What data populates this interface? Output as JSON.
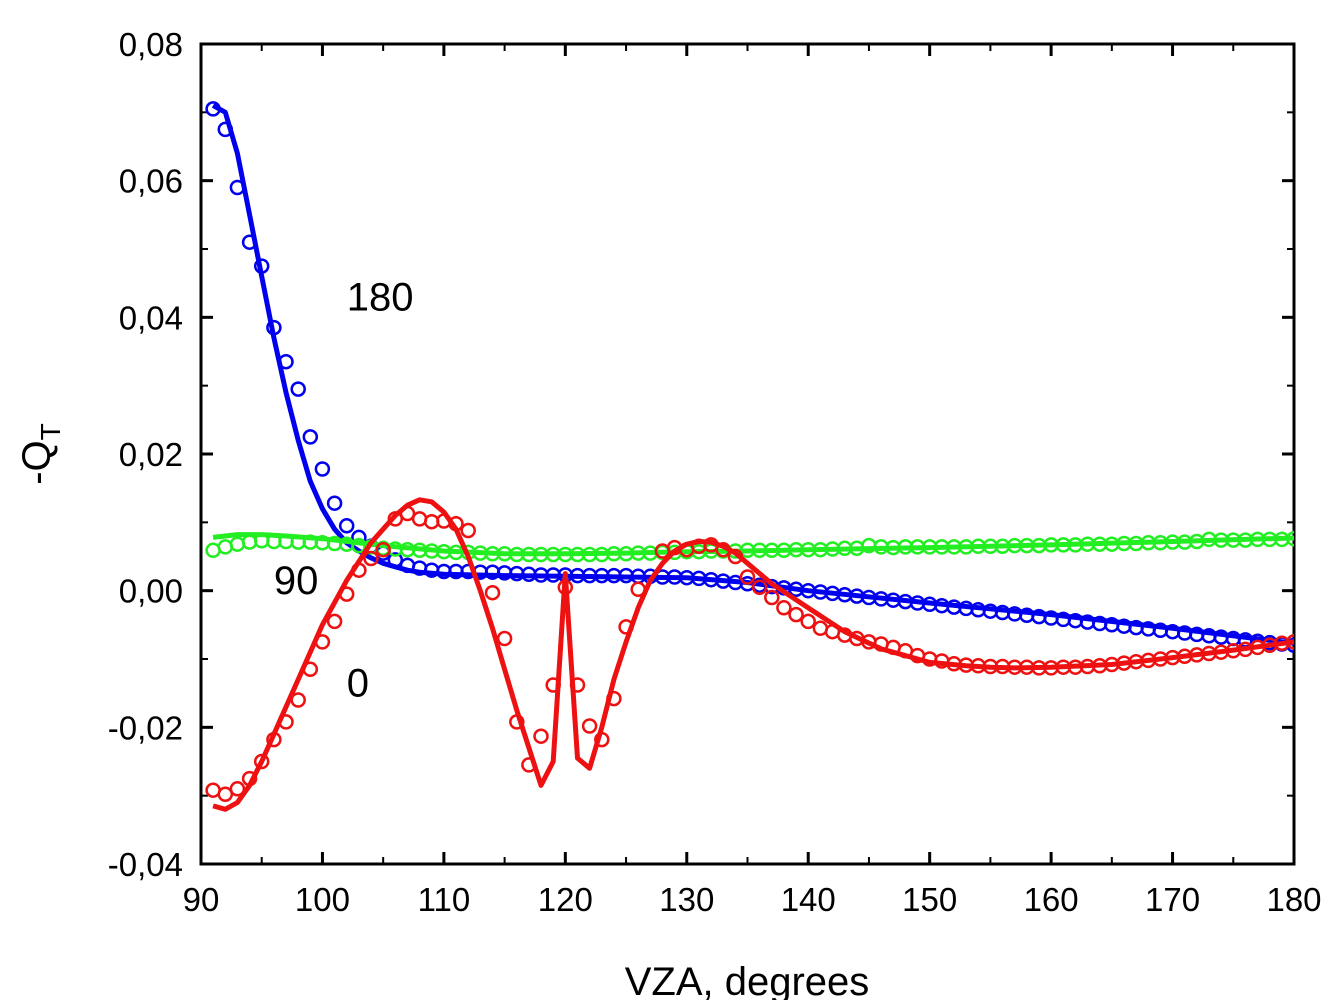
{
  "chart_data": {
    "type": "line",
    "title": "",
    "xlabel": "VZA, degrees",
    "ylabel_main": "-Q",
    "ylabel_sub": "T",
    "xlim": [
      90,
      180
    ],
    "ylim": [
      -0.04,
      0.08
    ],
    "x_ticks": [
      90,
      100,
      110,
      120,
      130,
      140,
      150,
      160,
      170,
      180
    ],
    "y_ticks": [
      -0.04,
      -0.02,
      0.0,
      0.02,
      0.04,
      0.06,
      0.08
    ],
    "x_tick_labels": [
      "90",
      "100",
      "110",
      "120",
      "130",
      "140",
      "150",
      "160",
      "170",
      "180"
    ],
    "y_tick_labels": [
      "-0,04",
      "-0,02",
      "0,00",
      "0,02",
      "0,04",
      "0,06",
      "0,08"
    ],
    "annotations": [
      {
        "text": "180",
        "x": 102,
        "y": 0.041
      },
      {
        "text": "90",
        "x": 96,
        "y": -0.0005
      },
      {
        "text": "0",
        "x": 102,
        "y": -0.0155
      }
    ],
    "series": [
      {
        "name": "180",
        "color": "#0000ee",
        "line": {
          "x": [
            91,
            92,
            93,
            94,
            95,
            96,
            97,
            98,
            99,
            100,
            101,
            102,
            103,
            104,
            105,
            106,
            107,
            108,
            110,
            115,
            120,
            125,
            130,
            135,
            140,
            150,
            160,
            170,
            180
          ],
          "y": [
            0.071,
            0.07,
            0.064,
            0.055,
            0.046,
            0.037,
            0.029,
            0.022,
            0.016,
            0.012,
            0.009,
            0.007,
            0.0058,
            0.0048,
            0.004,
            0.0035,
            0.003,
            0.0027,
            0.0024,
            0.0022,
            0.0021,
            0.002,
            0.0019,
            0.0012,
            0.0,
            -0.0018,
            -0.0035,
            -0.0055,
            -0.0077
          ]
        },
        "points": {
          "x": [
            91,
            92,
            93,
            94,
            95,
            96,
            97,
            98,
            99,
            100,
            101,
            102,
            103,
            104,
            105,
            106,
            107,
            108,
            109,
            110,
            111,
            112,
            113,
            114,
            115,
            116,
            117,
            118,
            119,
            120,
            121,
            122,
            123,
            124,
            125,
            126,
            127,
            128,
            129,
            130,
            131,
            132,
            133,
            134,
            135,
            136,
            137,
            138,
            139,
            140,
            141,
            142,
            143,
            144,
            145,
            146,
            147,
            148,
            149,
            150,
            151,
            152,
            153,
            154,
            155,
            156,
            157,
            158,
            159,
            160,
            161,
            162,
            163,
            164,
            165,
            166,
            167,
            168,
            169,
            170,
            171,
            172,
            173,
            174,
            175,
            176,
            177,
            178,
            179,
            180
          ],
          "y": [
            0.0705,
            0.0675,
            0.059,
            0.051,
            0.0475,
            0.0385,
            0.0335,
            0.0295,
            0.0225,
            0.0178,
            0.0128,
            0.0095,
            0.0078,
            0.0065,
            0.0055,
            0.0045,
            0.0037,
            0.0033,
            0.003,
            0.0028,
            0.0028,
            0.0028,
            0.0027,
            0.0027,
            0.0026,
            0.0025,
            0.0024,
            0.0023,
            0.0023,
            0.0023,
            0.0022,
            0.0022,
            0.0022,
            0.0022,
            0.0022,
            0.0021,
            0.0021,
            0.002,
            0.002,
            0.0019,
            0.0018,
            0.0016,
            0.0014,
            0.0012,
            0.001,
            0.0008,
            0.0006,
            0.0004,
            0.0002,
            0.0,
            -0.0002,
            -0.0004,
            -0.0006,
            -0.0008,
            -0.001,
            -0.0012,
            -0.0014,
            -0.0016,
            -0.0018,
            -0.002,
            -0.0022,
            -0.0024,
            -0.0026,
            -0.0028,
            -0.003,
            -0.0032,
            -0.0034,
            -0.0036,
            -0.0038,
            -0.004,
            -0.0042,
            -0.0044,
            -0.0046,
            -0.0048,
            -0.005,
            -0.0052,
            -0.0054,
            -0.0056,
            -0.0058,
            -0.006,
            -0.0062,
            -0.0064,
            -0.0066,
            -0.0068,
            -0.007,
            -0.0072,
            -0.0074,
            -0.0076,
            -0.0078,
            -0.008
          ]
        }
      },
      {
        "name": "90",
        "color": "#22ee22",
        "line": {
          "x": [
            91,
            93,
            95,
            97,
            100,
            105,
            110,
            115,
            120,
            125,
            130,
            135,
            140,
            150,
            160,
            170,
            180
          ],
          "y": [
            0.0078,
            0.0082,
            0.0082,
            0.008,
            0.0076,
            0.0066,
            0.0058,
            0.0054,
            0.0054,
            0.0055,
            0.0057,
            0.0058,
            0.006,
            0.0063,
            0.0067,
            0.0072,
            0.0077
          ]
        },
        "points": {
          "x": [
            91,
            92,
            93,
            94,
            95,
            96,
            97,
            98,
            99,
            100,
            101,
            102,
            103,
            104,
            105,
            106,
            107,
            108,
            109,
            110,
            111,
            112,
            113,
            114,
            115,
            116,
            117,
            118,
            119,
            120,
            121,
            122,
            123,
            124,
            125,
            126,
            127,
            128,
            129,
            130,
            131,
            132,
            133,
            134,
            135,
            136,
            137,
            138,
            139,
            140,
            141,
            142,
            143,
            144,
            145,
            146,
            147,
            148,
            149,
            150,
            151,
            152,
            153,
            154,
            155,
            156,
            157,
            158,
            159,
            160,
            161,
            162,
            163,
            164,
            165,
            166,
            167,
            168,
            169,
            170,
            171,
            172,
            173,
            174,
            175,
            176,
            177,
            178,
            179,
            180
          ],
          "y": [
            0.0059,
            0.0064,
            0.0068,
            0.0071,
            0.0073,
            0.0072,
            0.0072,
            0.0071,
            0.0071,
            0.007,
            0.0069,
            0.0068,
            0.0066,
            0.0064,
            0.0062,
            0.0061,
            0.006,
            0.0059,
            0.0058,
            0.0057,
            0.0056,
            0.0056,
            0.0055,
            0.0054,
            0.0054,
            0.0053,
            0.0053,
            0.0053,
            0.0053,
            0.0053,
            0.0053,
            0.0053,
            0.0053,
            0.0054,
            0.0054,
            0.0055,
            0.0055,
            0.0056,
            0.0056,
            0.0057,
            0.0057,
            0.0058,
            0.0058,
            0.0058,
            0.0059,
            0.0059,
            0.0059,
            0.0059,
            0.006,
            0.006,
            0.006,
            0.0061,
            0.0062,
            0.0062,
            0.0066,
            0.0064,
            0.0063,
            0.0064,
            0.0064,
            0.0064,
            0.0064,
            0.0064,
            0.0064,
            0.0065,
            0.0065,
            0.0065,
            0.0066,
            0.0066,
            0.0066,
            0.0067,
            0.0067,
            0.0067,
            0.0068,
            0.0068,
            0.0068,
            0.0069,
            0.0069,
            0.007,
            0.007,
            0.0071,
            0.0071,
            0.0072,
            0.0075,
            0.0074,
            0.0074,
            0.0074,
            0.0075,
            0.0075,
            0.0075,
            0.0076
          ]
        }
      },
      {
        "name": "0",
        "color": "#ee1111",
        "line": {
          "x": [
            91,
            92,
            93,
            94,
            95,
            96,
            98,
            100,
            102,
            104,
            106,
            107,
            108,
            109,
            110,
            111,
            112,
            113,
            114,
            115,
            116,
            117,
            118,
            119,
            120,
            121,
            122,
            123,
            124,
            125,
            126,
            127,
            128,
            129,
            130,
            131,
            132,
            133,
            134,
            135,
            137,
            140,
            143,
            146,
            150,
            153,
            155,
            157,
            160,
            165,
            170,
            175,
            180
          ],
          "y": [
            -0.0315,
            -0.032,
            -0.031,
            -0.0285,
            -0.025,
            -0.021,
            -0.013,
            -0.005,
            0.0015,
            0.007,
            0.011,
            0.0125,
            0.0133,
            0.013,
            0.0115,
            0.009,
            0.005,
            0.0,
            -0.0055,
            -0.0115,
            -0.0175,
            -0.023,
            -0.0285,
            -0.025,
            0.0025,
            -0.0245,
            -0.026,
            -0.02,
            -0.013,
            -0.0075,
            -0.0025,
            0.0015,
            0.004,
            0.0058,
            0.0068,
            0.0072,
            0.0071,
            0.0065,
            0.0055,
            0.004,
            0.001,
            -0.0025,
            -0.006,
            -0.0085,
            -0.0105,
            -0.011,
            -0.0112,
            -0.0113,
            -0.0112,
            -0.0108,
            -0.0098,
            -0.0087,
            -0.0075
          ]
        },
        "points": {
          "x": [
            91,
            92,
            93,
            94,
            95,
            96,
            97,
            98,
            99,
            100,
            101,
            102,
            103,
            104,
            105,
            106,
            107,
            108,
            109,
            110,
            111,
            112,
            114,
            115,
            116,
            117,
            118,
            119,
            120,
            121,
            122,
            123,
            124,
            125,
            126,
            128,
            129,
            130,
            131,
            132,
            133,
            134,
            135,
            136,
            137,
            138,
            139,
            140,
            141,
            142,
            143,
            144,
            145,
            146,
            147,
            148,
            149,
            150,
            151,
            152,
            153,
            154,
            155,
            156,
            157,
            158,
            159,
            160,
            161,
            162,
            163,
            164,
            165,
            166,
            167,
            168,
            169,
            170,
            171,
            172,
            173,
            174,
            175,
            176,
            177,
            178,
            179,
            180
          ],
          "y": [
            -0.0292,
            -0.0298,
            -0.029,
            -0.0275,
            -0.025,
            -0.0218,
            -0.0192,
            -0.016,
            -0.0115,
            -0.0075,
            -0.0045,
            -0.0005,
            0.003,
            0.0047,
            0.006,
            0.0105,
            0.0113,
            0.0105,
            0.0101,
            0.0102,
            0.0098,
            0.0088,
            -0.0003,
            -0.007,
            -0.0192,
            -0.0255,
            -0.0213,
            -0.0138,
            0.0005,
            -0.0138,
            -0.0198,
            -0.0218,
            -0.0158,
            -0.0053,
            0.0002,
            0.0058,
            0.0063,
            0.006,
            0.0065,
            0.0067,
            0.006,
            0.005,
            0.002,
            0.0005,
            -0.001,
            -0.0025,
            -0.0035,
            -0.0045,
            -0.0055,
            -0.006,
            -0.0065,
            -0.007,
            -0.0075,
            -0.0078,
            -0.0083,
            -0.0088,
            -0.0095,
            -0.01,
            -0.0103,
            -0.0107,
            -0.0109,
            -0.011,
            -0.0111,
            -0.0111,
            -0.0112,
            -0.0112,
            -0.0113,
            -0.0113,
            -0.0112,
            -0.0112,
            -0.0111,
            -0.011,
            -0.0108,
            -0.0106,
            -0.0104,
            -0.0102,
            -0.01,
            -0.0098,
            -0.0096,
            -0.0094,
            -0.0092,
            -0.009,
            -0.0088,
            -0.0086,
            -0.0083,
            -0.008,
            -0.0077,
            -0.0075
          ]
        }
      }
    ]
  }
}
